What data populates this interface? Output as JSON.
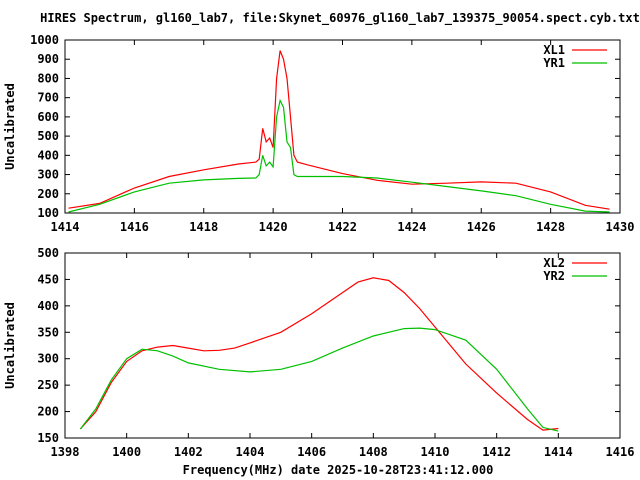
{
  "chart_data": {
    "title": "HIRES Spectrum, gl160_lab7, file:Skynet_60976_gl160_lab7_139375_90054.spect.cyb.txt",
    "xlabel": "Frequency(MHz) date 2025-10-28T23:41:12.000",
    "colors": {
      "red": "#ff0000",
      "green": "#00c000"
    },
    "charts": [
      {
        "type": "line",
        "ylabel": "Uncalibrated",
        "xlim": [
          1414,
          1430
        ],
        "ylim": [
          100,
          1000
        ],
        "xticks": [
          1414,
          1416,
          1418,
          1420,
          1422,
          1424,
          1426,
          1428,
          1430
        ],
        "yticks": [
          100,
          200,
          300,
          400,
          500,
          600,
          700,
          800,
          900,
          1000
        ],
        "legend": "top-right",
        "series": [
          {
            "name": "XL1",
            "color": "#ff0000",
            "x": [
              1414.1,
              1415,
              1416,
              1417,
              1418,
              1419,
              1419.5,
              1419.6,
              1419.7,
              1419.8,
              1419.9,
              1420,
              1420.1,
              1420.2,
              1420.3,
              1420.4,
              1420.5,
              1420.6,
              1420.7,
              1421,
              1422,
              1423,
              1424,
              1425,
              1426,
              1427,
              1428,
              1429,
              1429.7
            ],
            "y": [
              125,
              150,
              230,
              290,
              325,
              355,
              365,
              380,
              540,
              470,
              490,
              440,
              800,
              945,
              900,
              800,
              600,
              400,
              365,
              350,
              305,
              270,
              250,
              255,
              262,
              255,
              210,
              140,
              120
            ]
          },
          {
            "name": "YR1",
            "color": "#00c000",
            "x": [
              1414.1,
              1415,
              1416,
              1417,
              1418,
              1419,
              1419.5,
              1419.6,
              1419.7,
              1419.8,
              1419.9,
              1420,
              1420.1,
              1420.2,
              1420.3,
              1420.4,
              1420.5,
              1420.6,
              1420.7,
              1422,
              1423,
              1424,
              1425,
              1426,
              1427,
              1428,
              1429,
              1429.7
            ],
            "y": [
              105,
              145,
              210,
              255,
              272,
              280,
              282,
              300,
              400,
              345,
              365,
              340,
              600,
              685,
              650,
              470,
              440,
              300,
              290,
              290,
              282,
              260,
              238,
              215,
              190,
              145,
              110,
              105
            ]
          }
        ]
      },
      {
        "type": "line",
        "ylabel": "Uncalibrated",
        "xlim": [
          1398,
          1416
        ],
        "ylim": [
          150,
          500
        ],
        "xticks": [
          1398,
          1400,
          1402,
          1404,
          1406,
          1408,
          1410,
          1412,
          1414,
          1416
        ],
        "yticks": [
          150,
          200,
          250,
          300,
          350,
          400,
          450,
          500
        ],
        "legend": "top-right",
        "series": [
          {
            "name": "XL2",
            "color": "#ff0000",
            "x": [
              1398.5,
              1399,
              1399.5,
              1400,
              1400.5,
              1401,
              1401.5,
              1402,
              1402.5,
              1403,
              1403.5,
              1404,
              1405,
              1406,
              1407,
              1407.5,
              1408,
              1408.5,
              1409,
              1409.5,
              1410,
              1411,
              1412,
              1413,
              1413.5,
              1414
            ],
            "y": [
              167,
              200,
              255,
              295,
              315,
              322,
              325,
              320,
              315,
              316,
              320,
              330,
              350,
              385,
              425,
              445,
              453,
              448,
              425,
              395,
              360,
              290,
              235,
              185,
              165,
              168
            ]
          },
          {
            "name": "YR2",
            "color": "#00c000",
            "x": [
              1398.5,
              1399,
              1399.5,
              1400,
              1400.5,
              1401,
              1401.5,
              1402,
              1403,
              1404,
              1405,
              1406,
              1407,
              1408,
              1409,
              1409.5,
              1410,
              1411,
              1412,
              1413,
              1413.5,
              1414
            ],
            "y": [
              167,
              205,
              260,
              300,
              318,
              315,
              305,
              292,
              280,
              275,
              280,
              295,
              320,
              343,
              357,
              358,
              355,
              335,
              280,
              205,
              170,
              163
            ]
          }
        ]
      }
    ]
  }
}
